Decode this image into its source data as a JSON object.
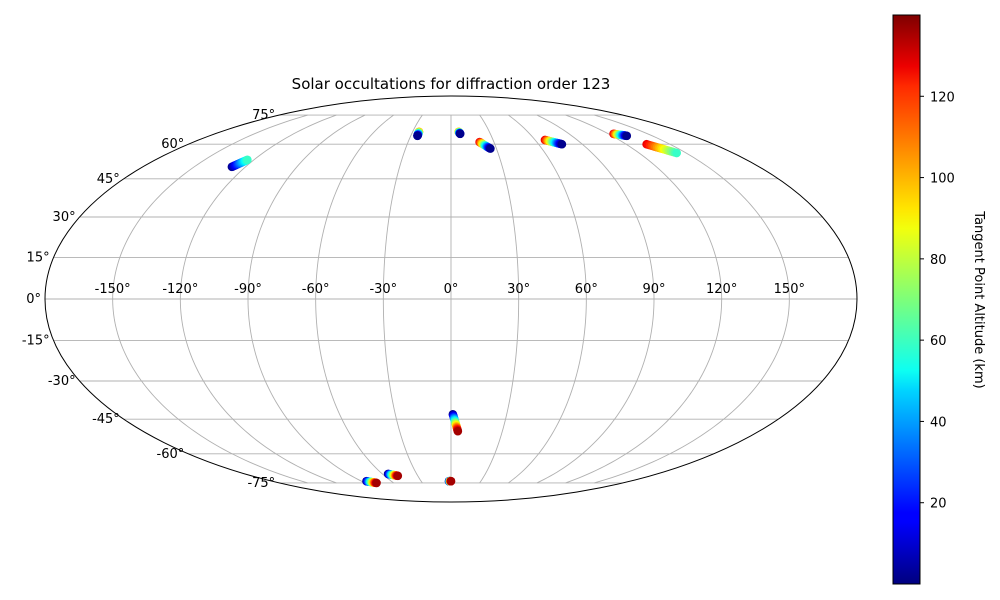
{
  "chart_data": {
    "type": "scatter",
    "projection": "mollweide",
    "title": "Solar occultations for diffraction order 123",
    "longitude_ticks": [
      "-150°",
      "-120°",
      "-90°",
      "-60°",
      "-30°",
      "0°",
      "30°",
      "60°",
      "90°",
      "120°",
      "150°"
    ],
    "latitude_ticks": [
      "75°",
      "60°",
      "45°",
      "30°",
      "15°",
      "0°",
      "-15°",
      "-30°",
      "-45°",
      "-60°",
      "-75°"
    ],
    "grid": true,
    "xlabel": "",
    "ylabel": "",
    "colorbar": {
      "label": "Tangent Point Altitude (km)",
      "min": 0,
      "max": 140,
      "ticks": [
        "20",
        "40",
        "60",
        "80",
        "100",
        "120"
      ],
      "colormap": "jet",
      "placement": "right"
    },
    "series": [
      {
        "lon_start": -128,
        "lat_start": 50,
        "lon_end": -124,
        "lat_end": 53,
        "alt_start": 2,
        "alt_end": 60
      },
      {
        "lon_start": -25,
        "lat_start": 66,
        "lon_end": -25,
        "lat_end": 64,
        "alt_start": 100,
        "alt_end": 2
      },
      {
        "lon_start": 6,
        "lat_start": 66,
        "lon_end": 7,
        "lat_end": 65,
        "alt_start": 100,
        "alt_end": 2
      },
      {
        "lon_start": 20,
        "lat_start": 61,
        "lon_end": 26,
        "lat_end": 58,
        "alt_start": 125,
        "alt_end": 2
      },
      {
        "lon_start": 67,
        "lat_start": 62,
        "lon_end": 76,
        "lat_end": 60,
        "alt_start": 125,
        "alt_end": 2
      },
      {
        "lon_start": 124,
        "lat_start": 65,
        "lon_end": 131,
        "lat_end": 64,
        "alt_start": 125,
        "alt_end": 2
      },
      {
        "lon_start": 134,
        "lat_start": 60,
        "lon_end": 144,
        "lat_end": 56,
        "alt_start": 125,
        "alt_end": 60
      },
      {
        "lon_start": 1,
        "lat_start": -43,
        "lon_end": 4,
        "lat_end": -50,
        "alt_start": 2,
        "alt_end": 135
      },
      {
        "lon_start": -2,
        "lat_start": -74,
        "lon_end": 0,
        "lat_end": -74,
        "alt_start": 2,
        "alt_end": 135
      },
      {
        "lon_start": -55,
        "lat_start": -70,
        "lon_end": -48,
        "lat_end": -71,
        "alt_start": 2,
        "alt_end": 135
      },
      {
        "lon_start": -85,
        "lat_start": -74,
        "lon_end": -78,
        "lat_end": -75,
        "alt_start": 2,
        "alt_end": 135
      }
    ],
    "dot_color_note": "colored by altitude",
    "colors": {
      "grid": "#b0b0b0",
      "outline": "#000000"
    }
  }
}
